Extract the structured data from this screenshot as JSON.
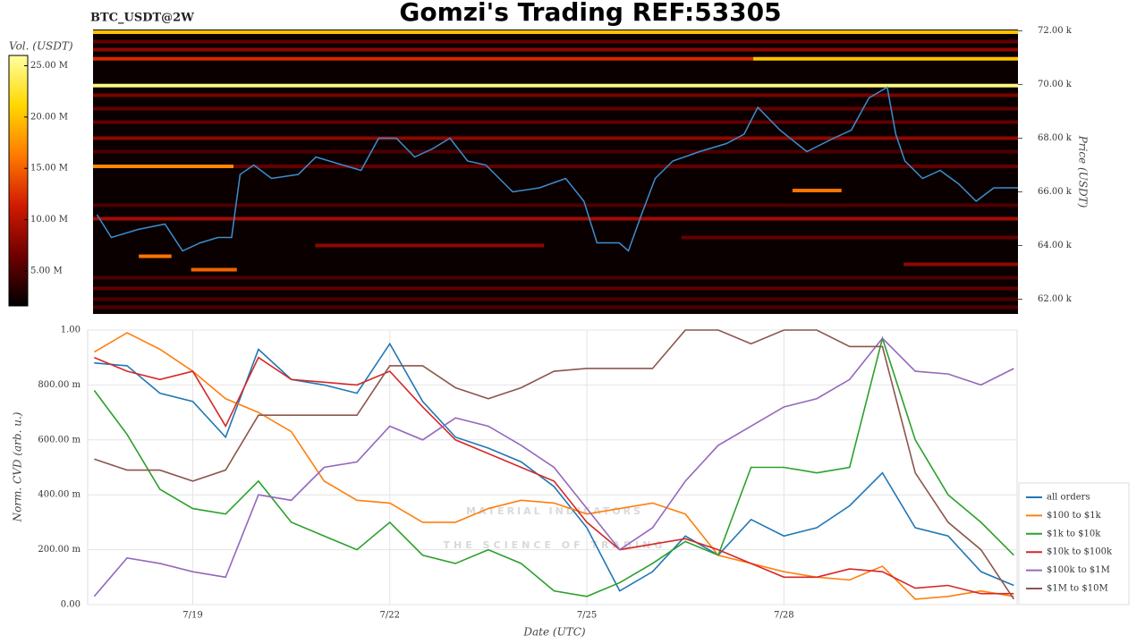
{
  "chart_data": [
    {
      "type": "heatmap",
      "title": "Gomzi's Trading REF:53305",
      "label": "BTC_USDT@2W",
      "colorbar_label": "Vol. (USDT)",
      "y_label": "Price (USDT)",
      "xlim": [
        17.4,
        31.55
      ],
      "ylim": [
        61450,
        72050
      ],
      "yticks": [
        {
          "value": 62000,
          "label": "62.00 k"
        },
        {
          "value": 64000,
          "label": "64.00 k"
        },
        {
          "value": 66000,
          "label": "66.00 k"
        },
        {
          "value": 68000,
          "label": "68.00 k"
        },
        {
          "value": 70000,
          "label": "70.00 k"
        },
        {
          "value": 72000,
          "label": "72.00 k"
        }
      ],
      "clim": [
        1600000,
        26000000
      ],
      "cticks": [
        {
          "value": 5000000,
          "label": "5.00 M"
        },
        {
          "value": 10000000,
          "label": "10.00 M"
        },
        {
          "value": 15000000,
          "label": "15.00 M"
        },
        {
          "value": 20000000,
          "label": "20.00 M"
        },
        {
          "value": 25000000,
          "label": "25.00 M"
        }
      ],
      "colorscale": [
        "#000000",
        "#6e0000",
        "#d01a00",
        "#ff7a00",
        "#ffd800",
        "#ffffa0"
      ],
      "bands": {
        "price": [
          71950,
          71600,
          71300,
          70960,
          70960,
          69960,
          69600,
          69100,
          68600,
          68000,
          67500,
          66950,
          66950,
          66050,
          65500,
          65000,
          64300,
          64000,
          63600,
          63300,
          63100,
          62800,
          62400,
          62000,
          61700
        ],
        "x_start": [
          17.4,
          17.4,
          17.4,
          17.4,
          27.5,
          17.4,
          17.4,
          17.4,
          17.4,
          17.4,
          17.4,
          17.4,
          19.55,
          28.1,
          17.4,
          17.4,
          26.4,
          20.8,
          18.1,
          29.8,
          18.9,
          17.4,
          17.4,
          17.4,
          17.4
        ],
        "x_end": [
          31.55,
          31.55,
          31.55,
          27.5,
          31.55,
          31.55,
          31.55,
          31.55,
          31.55,
          31.55,
          31.55,
          19.55,
          31.55,
          28.85,
          31.55,
          31.55,
          31.55,
          24.3,
          18.6,
          31.55,
          19.6,
          31.55,
          31.55,
          31.55,
          31.55
        ],
        "volume": [
          20000000,
          6000000,
          8000000,
          12000000,
          20000000,
          25000000,
          7000000,
          6000000,
          6000000,
          8000000,
          5000000,
          17000000,
          6000000,
          16000000,
          5000000,
          9000000,
          6000000,
          8000000,
          16000000,
          8000000,
          15000000,
          5000000,
          6000000,
          5000000,
          5000000
        ]
      },
      "price_line": {
        "color": "#3b8ed0",
        "x": [
          17.46,
          17.68,
          18.09,
          18.5,
          18.77,
          19.04,
          19.31,
          19.52,
          19.65,
          19.86,
          20.13,
          20.54,
          20.81,
          21.22,
          21.5,
          21.77,
          22.04,
          22.32,
          22.59,
          22.86,
          23.13,
          23.41,
          23.82,
          24.23,
          24.63,
          24.91,
          25.11,
          25.45,
          25.59,
          25.79,
          26.0,
          26.27,
          26.68,
          27.09,
          27.36,
          27.57,
          27.91,
          28.32,
          28.73,
          29.0,
          29.27,
          29.55,
          29.68,
          29.82,
          30.09,
          30.36,
          30.64,
          30.91,
          31.18,
          31.55
        ],
        "values": [
          65150,
          64300,
          64600,
          64800,
          63800,
          64100,
          64300,
          64300,
          66650,
          67000,
          66500,
          66650,
          67300,
          67000,
          66800,
          68000,
          68000,
          67300,
          67600,
          68000,
          67150,
          67000,
          66000,
          66150,
          66500,
          65650,
          64100,
          64100,
          63800,
          65150,
          66500,
          67150,
          67500,
          67800,
          68150,
          69150,
          68300,
          67500,
          68000,
          68300,
          69500,
          69900,
          68150,
          67150,
          66500,
          66800,
          66300,
          65650,
          66150,
          66150
        ]
      }
    },
    {
      "type": "line",
      "x_label": "Date (UTC)",
      "y_label": "Norm. CVD (arb. u.)",
      "watermark": [
        "MATERIAL INDICATORS",
        "THE SCIENCE OF TRADING"
      ],
      "grid": true,
      "legend": "right",
      "xlim": [
        17.4,
        31.55
      ],
      "xticks": [
        {
          "value": 19,
          "label": "7/19"
        },
        {
          "value": 22,
          "label": "7/22"
        },
        {
          "value": 25,
          "label": "7/25"
        },
        {
          "value": 28,
          "label": "7/28"
        }
      ],
      "ylim": [
        0,
        1
      ],
      "yticks": [
        {
          "value": 0,
          "label": "0.00"
        },
        {
          "value": 0.2,
          "label": "200.00 m"
        },
        {
          "value": 0.4,
          "label": "400.00 m"
        },
        {
          "value": 0.6,
          "label": "600.00 m"
        },
        {
          "value": 0.8,
          "label": "800.00 m"
        },
        {
          "value": 1,
          "label": "1.00"
        }
      ],
      "x": [
        17.5,
        18,
        18.5,
        19,
        19.5,
        20,
        20.5,
        21,
        21.5,
        22,
        22.5,
        23,
        23.5,
        24,
        24.5,
        25,
        25.5,
        26,
        26.5,
        27,
        27.5,
        28,
        28.5,
        29,
        29.5,
        30,
        30.5,
        31,
        31.5
      ],
      "series": [
        {
          "name": "all orders",
          "color": "#1f77b4",
          "values": [
            0.88,
            0.87,
            0.77,
            0.74,
            0.61,
            0.93,
            0.82,
            0.8,
            0.77,
            0.95,
            0.74,
            0.61,
            0.57,
            0.52,
            0.43,
            0.28,
            0.05,
            0.12,
            0.25,
            0.18,
            0.31,
            0.25,
            0.28,
            0.36,
            0.48,
            0.28,
            0.25,
            0.12,
            0.07
          ]
        },
        {
          "name": "$100 to $1k",
          "color": "#ff7f0e",
          "values": [
            0.92,
            0.99,
            0.93,
            0.85,
            0.75,
            0.7,
            0.63,
            0.45,
            0.38,
            0.37,
            0.3,
            0.3,
            0.35,
            0.38,
            0.37,
            0.33,
            0.35,
            0.37,
            0.33,
            0.18,
            0.15,
            0.12,
            0.1,
            0.09,
            0.14,
            0.02,
            0.03,
            0.05,
            0.03
          ]
        },
        {
          "name": "$1k to $10k",
          "color": "#2ca02c",
          "values": [
            0.78,
            0.62,
            0.42,
            0.35,
            0.33,
            0.45,
            0.3,
            0.25,
            0.2,
            0.3,
            0.18,
            0.15,
            0.2,
            0.15,
            0.05,
            0.03,
            0.08,
            0.15,
            0.23,
            0.18,
            0.5,
            0.5,
            0.48,
            0.5,
            0.97,
            0.6,
            0.4,
            0.3,
            0.18
          ]
        },
        {
          "name": "$10k to $100k",
          "color": "#d62728",
          "values": [
            0.9,
            0.85,
            0.82,
            0.85,
            0.65,
            0.9,
            0.82,
            0.81,
            0.8,
            0.85,
            0.72,
            0.6,
            0.55,
            0.5,
            0.45,
            0.3,
            0.2,
            0.22,
            0.24,
            0.2,
            0.15,
            0.1,
            0.1,
            0.13,
            0.12,
            0.06,
            0.07,
            0.04,
            0.04
          ]
        },
        {
          "name": "$100k to $1M",
          "color": "#9467bd",
          "values": [
            0.03,
            0.17,
            0.15,
            0.12,
            0.1,
            0.4,
            0.38,
            0.5,
            0.52,
            0.65,
            0.6,
            0.68,
            0.65,
            0.58,
            0.5,
            0.35,
            0.2,
            0.28,
            0.45,
            0.58,
            0.65,
            0.72,
            0.75,
            0.82,
            0.97,
            0.85,
            0.84,
            0.8,
            0.86
          ]
        },
        {
          "name": "$1M to $10M",
          "color": "#8c564b",
          "values": [
            0.53,
            0.49,
            0.49,
            0.45,
            0.49,
            0.69,
            0.69,
            0.69,
            0.69,
            0.87,
            0.87,
            0.79,
            0.75,
            0.79,
            0.85,
            0.86,
            0.86,
            0.86,
            1.0,
            1.0,
            0.95,
            1.0,
            1.0,
            0.94,
            0.94,
            0.48,
            0.3,
            0.2,
            0.02
          ]
        }
      ]
    }
  ]
}
